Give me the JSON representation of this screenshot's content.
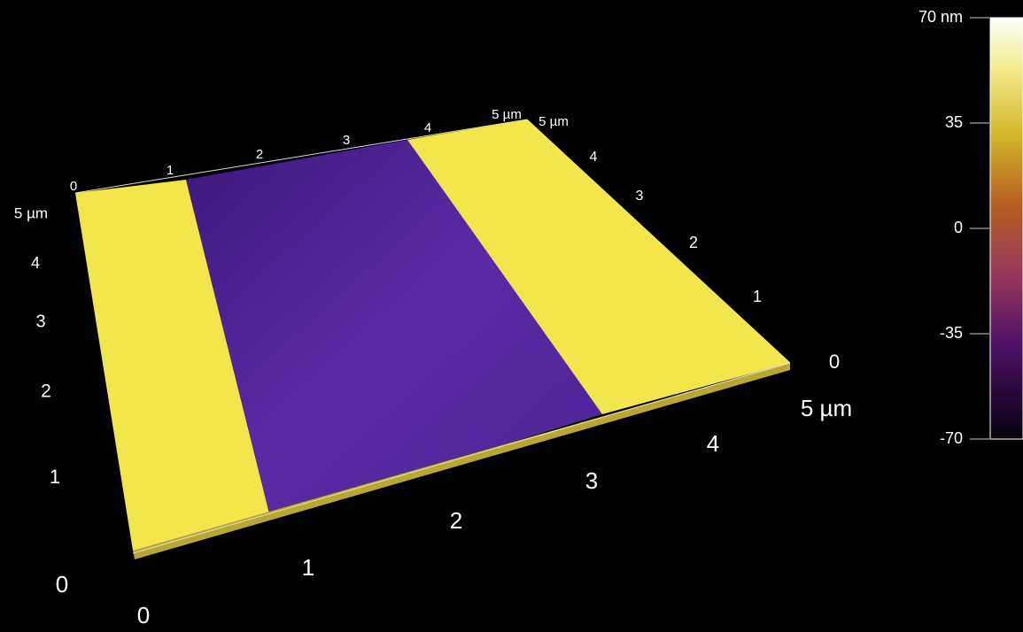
{
  "colorbar": {
    "labels": [
      "70 nm",
      "35",
      "0",
      "-35",
      "-70"
    ]
  },
  "axes": {
    "front": [
      "0",
      "1",
      "2",
      "3",
      "4",
      "5 µm"
    ],
    "right": [
      "0",
      "1",
      "2",
      "3",
      "4",
      "5 µm"
    ],
    "left": [
      "0",
      "1",
      "2",
      "3",
      "4",
      "5 µm"
    ],
    "back": [
      "0",
      "1",
      "2",
      "3",
      "4",
      "5 µm"
    ]
  }
}
